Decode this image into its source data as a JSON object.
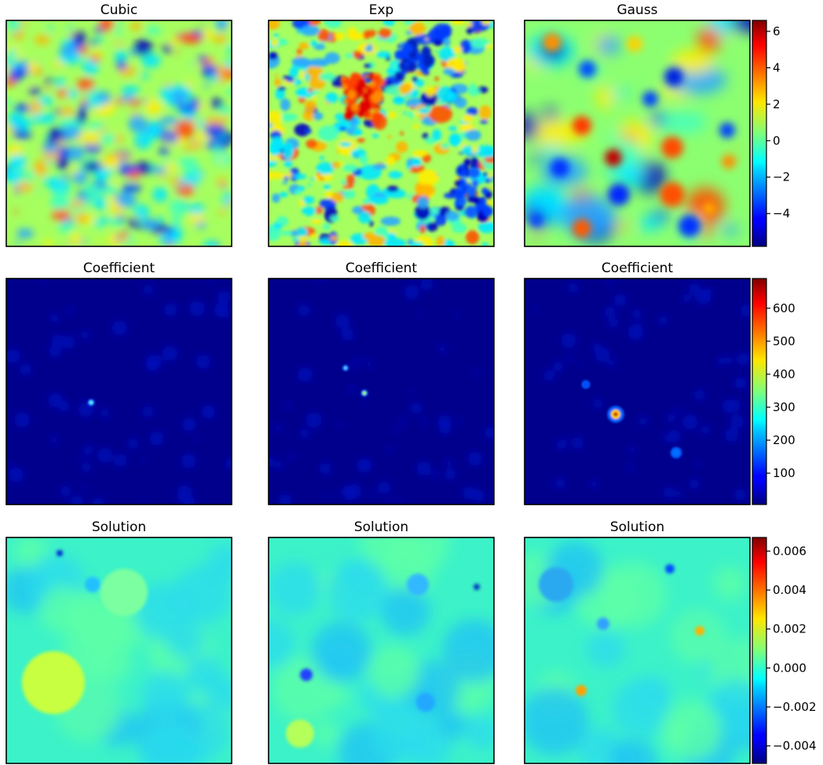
{
  "chart_data": {
    "type": "heatmap",
    "colormap": "jet",
    "grid": false,
    "rows": [
      {
        "name": "random-fields",
        "titles": [
          "Cubic",
          "Exp",
          "Gauss"
        ],
        "colorbar": {
          "range": [
            -5.8,
            6.6
          ],
          "ticks": [
            6,
            4,
            2,
            0,
            -2,
            -4
          ],
          "tick_labels": [
            "6",
            "4",
            "2",
            "0",
            "−2",
            "−4"
          ]
        }
      },
      {
        "name": "coefficients",
        "titles": [
          "Coefficient",
          "Coefficient",
          "Coefficient"
        ],
        "colorbar": {
          "range": [
            5,
            690
          ],
          "ticks": [
            600,
            500,
            400,
            300,
            200,
            100
          ],
          "tick_labels": [
            "600",
            "500",
            "400",
            "300",
            "200",
            "100"
          ]
        }
      },
      {
        "name": "solutions",
        "titles": [
          "Solution",
          "Solution",
          "Solution"
        ],
        "colorbar": {
          "range": [
            -0.0049,
            0.0067
          ],
          "ticks": [
            0.006,
            0.004,
            0.002,
            0.0,
            -0.002,
            -0.004
          ],
          "tick_labels": [
            "0.006",
            "0.004",
            "0.002",
            "0.000",
            "−0.002",
            "−0.004"
          ]
        }
      }
    ]
  }
}
